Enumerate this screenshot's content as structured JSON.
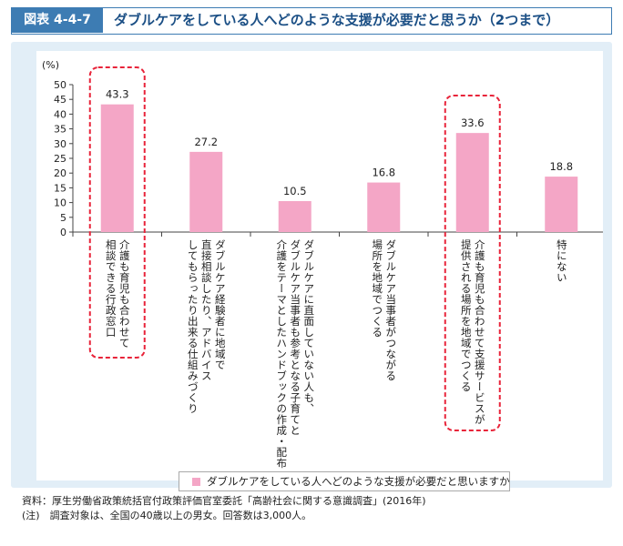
{
  "header": {
    "label": "図表 4-4-7",
    "title": "ダブルケアをしている人へどのような支援が必要だと思うか（2つまで）"
  },
  "chart_data": {
    "type": "bar",
    "ylabel": "(%)",
    "ylim": [
      0,
      50
    ],
    "yticks": [
      0,
      5,
      10,
      15,
      20,
      25,
      30,
      35,
      40,
      45,
      50
    ],
    "categories": [
      "介護も育児も合わせて\n相談できる行政窓口",
      "ダブルケア経験者に地域で\n直接相談したり、アドバイス\nしてもらったり出来る仕組みづくり",
      "ダブルケアに直面していない人も、\nダブルケア当事者も参考となる子育てと\n介護をテーマとしたハンドブックの作成・配布",
      "ダブルケア当事者がつながる\n場所を地域でつくる",
      "介護も育児も合わせて支援サービスが\n提供される場所を地域でつくる",
      "特にない"
    ],
    "series": [
      {
        "name": "ダブルケアをしている人へどのような支援が必要だと思いますか",
        "values": [
          43.3,
          27.2,
          10.5,
          16.8,
          33.6,
          18.8
        ]
      }
    ],
    "value_labels": [
      "43.3",
      "27.2",
      "10.5",
      "16.8",
      "33.6",
      "18.8"
    ],
    "highlighted": [
      0,
      4
    ],
    "grid": false,
    "legend_position": "bottom-center"
  },
  "colors": {
    "bar": "#f4a6c6",
    "highlight": "#e8243a",
    "panel": "#e2eef7",
    "header_blue": "#3d7cb3"
  },
  "notes": [
    "資料：厚生労働省政策統括官付政策評価官室委託「高齢社会に関する意識調査」(2016年)",
    "(注)　調査対象は、全国の40歳以上の男女。回答数は3,000人。"
  ]
}
